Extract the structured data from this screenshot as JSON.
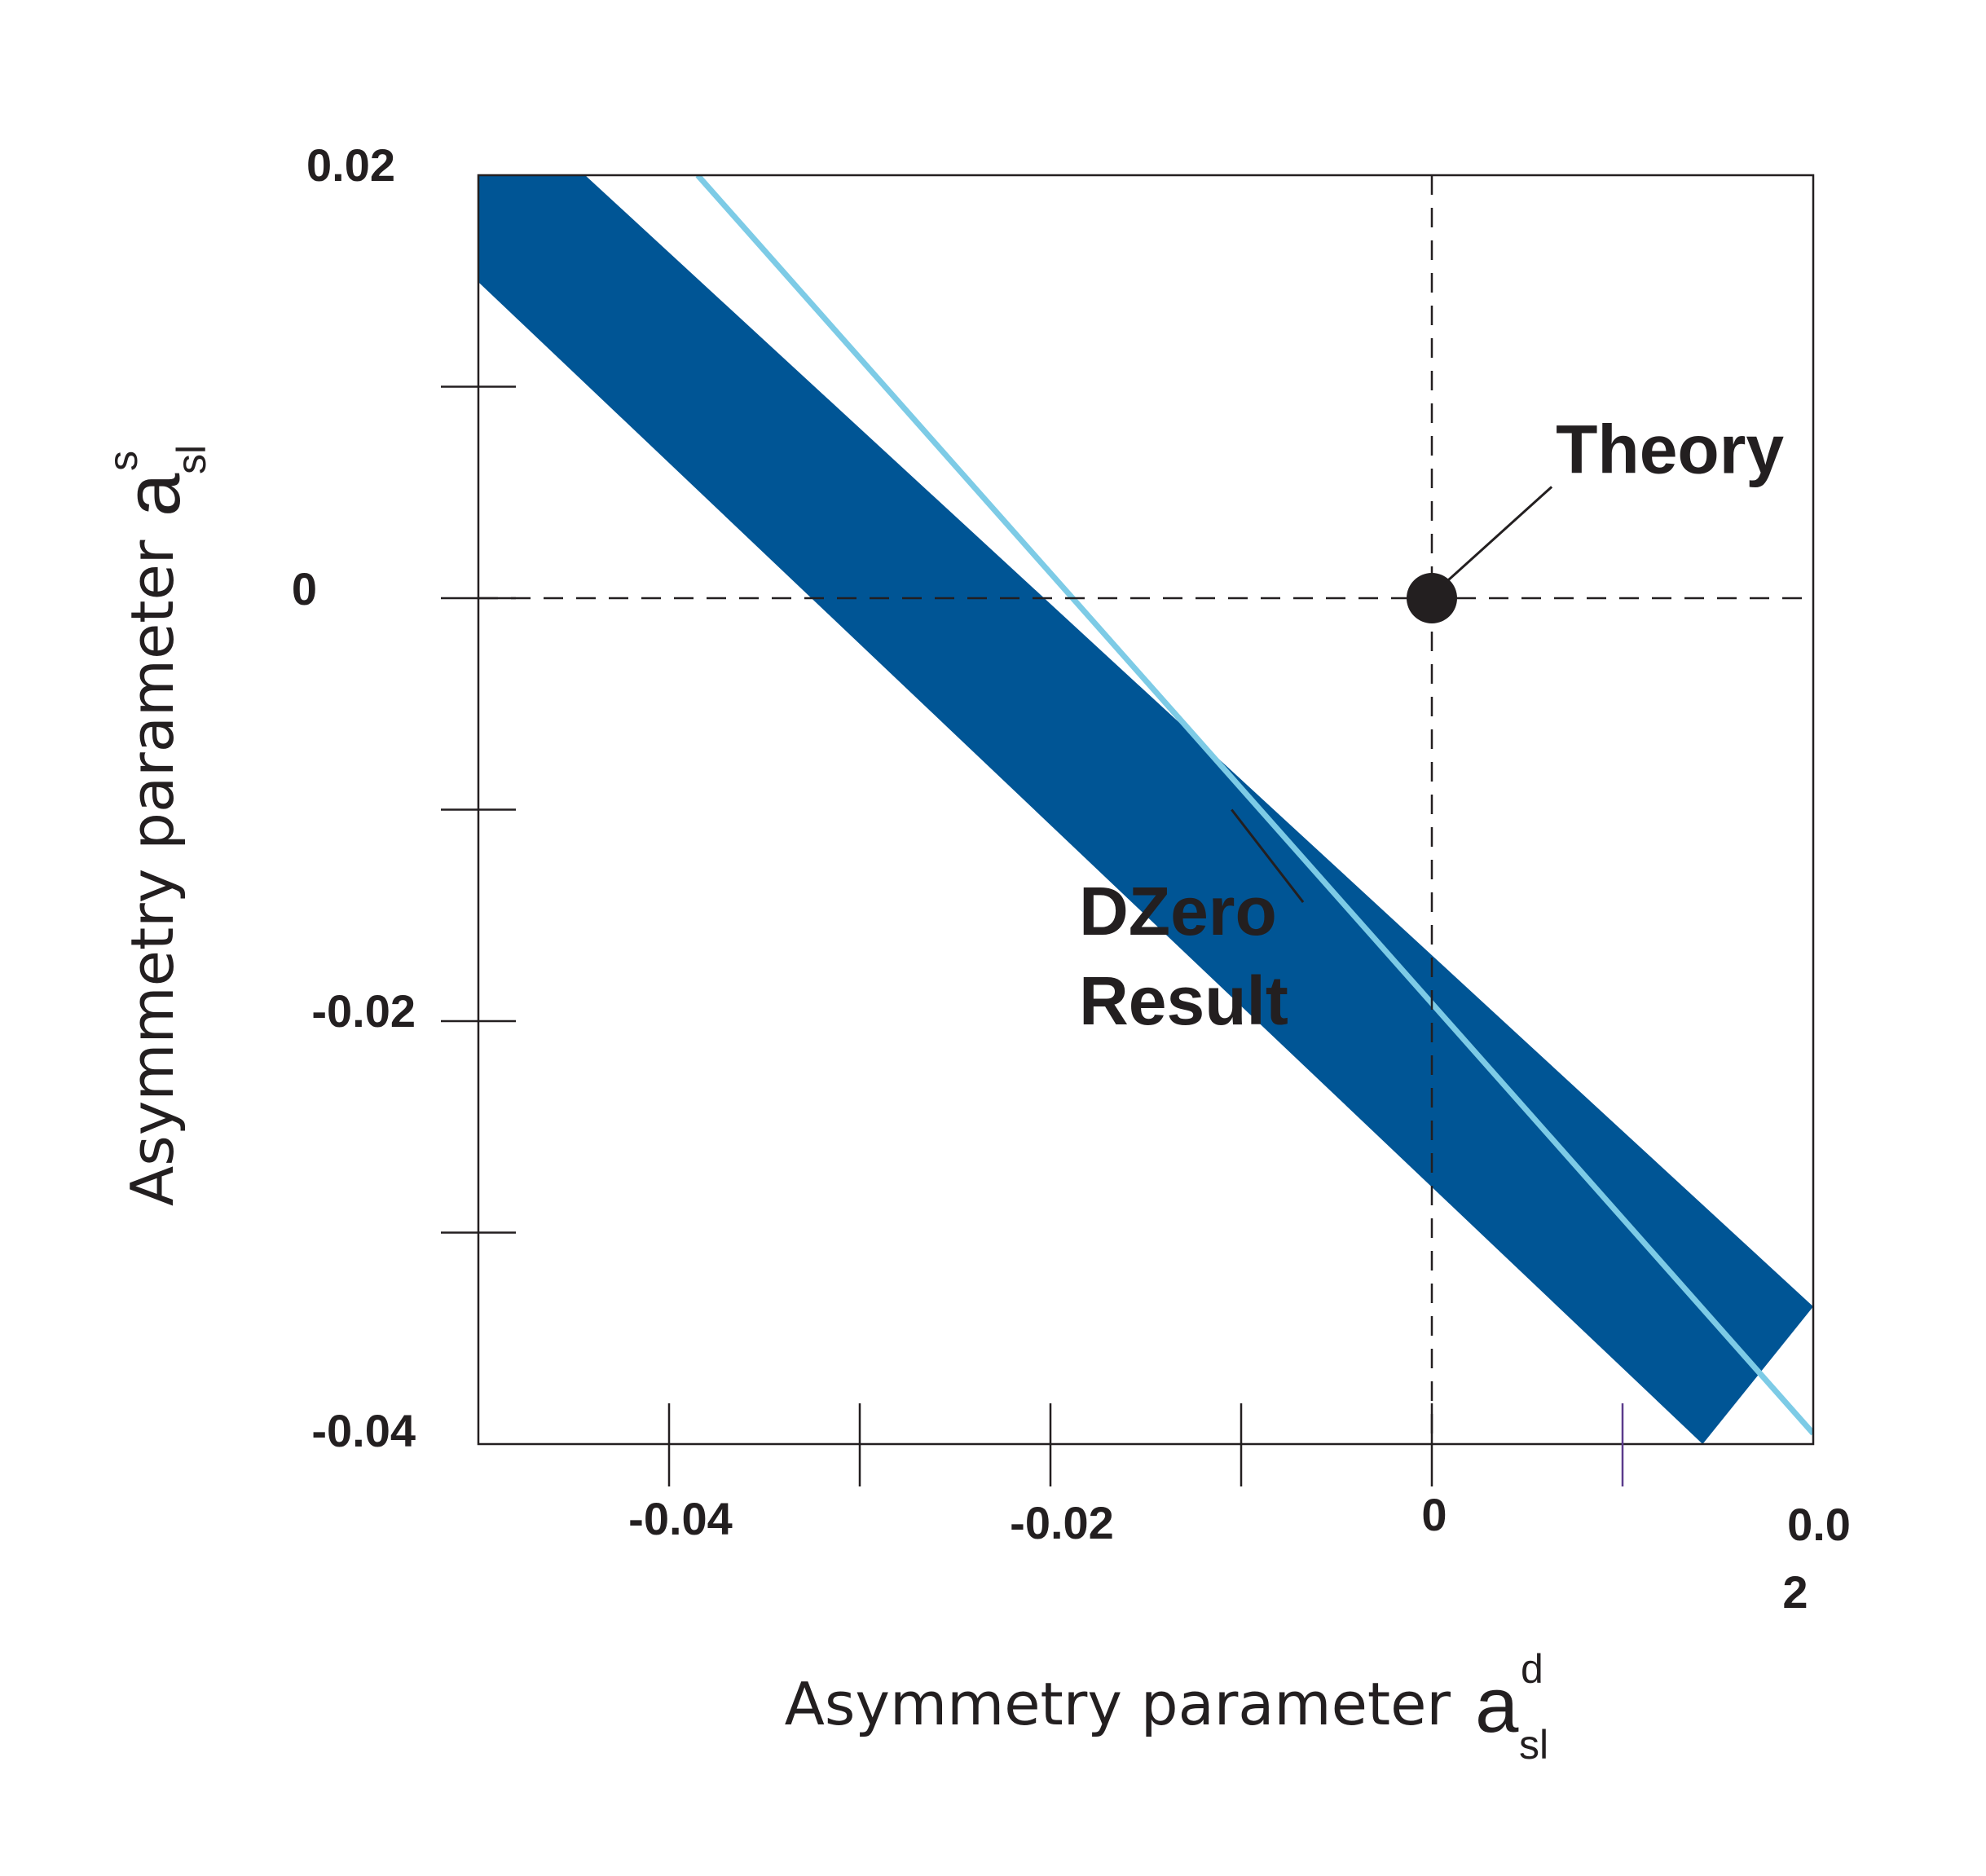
{
  "chart_data": {
    "type": "area",
    "x_axis": {
      "title": "Asymmetry parameter",
      "symbol": "a",
      "sup": "d",
      "sub": "sl",
      "range": [
        -0.05,
        0.02
      ],
      "ticks": [
        -0.04,
        -0.03,
        -0.02,
        -0.01,
        0,
        0.01,
        0.02
      ],
      "tick_labels": [
        {
          "value": -0.04,
          "text": "-0.04"
        },
        {
          "value": -0.02,
          "text": "-0.02"
        },
        {
          "value": 0,
          "text": "0"
        },
        {
          "value": 0.02,
          "line1": "0.0",
          "line2": "2"
        }
      ]
    },
    "y_axis": {
      "title": "Asymmetry parameter",
      "symbol": "a",
      "sup": "s",
      "sub": "sl",
      "range": [
        -0.04,
        0.02
      ],
      "ticks": [
        0.02,
        0.01,
        0,
        -0.01,
        -0.02,
        -0.03,
        -0.04
      ],
      "tick_labels": [
        {
          "value": 0.02,
          "text": "0.02"
        },
        {
          "value": 0,
          "text": "0"
        },
        {
          "value": -0.02,
          "text": "-0.02"
        },
        {
          "value": -0.04,
          "text": "-0.04"
        }
      ]
    },
    "band": {
      "upper_edge": [
        [
          -0.0444,
          0.02
        ],
        [
          0.02,
          -0.0335
        ]
      ],
      "lower_edge": [
        [
          -0.0559,
          0.02
        ],
        [
          0.0142,
          -0.04
        ]
      ],
      "center_line": [
        [
          -0.0385,
          0.02
        ],
        [
          0.02,
          -0.0395
        ]
      ],
      "fill_color": "#005595",
      "line_color": "#7dcbe6"
    },
    "reference_lines": [
      {
        "orientation": "horizontal",
        "value": 0,
        "style": "dashed"
      },
      {
        "orientation": "vertical",
        "value": 0,
        "style": "dashed"
      }
    ],
    "points": [
      {
        "x": 0,
        "y": 0,
        "color": "#231f20"
      }
    ],
    "annotations": {
      "theory": {
        "text": "Theory",
        "x": 0.0065,
        "y": 0.007
      },
      "dzero": {
        "line1": "DZero",
        "line2": "Result",
        "x": -0.0185,
        "y": -0.019,
        "pointer": [
          -0.0105,
          -0.01
        ]
      }
    }
  }
}
